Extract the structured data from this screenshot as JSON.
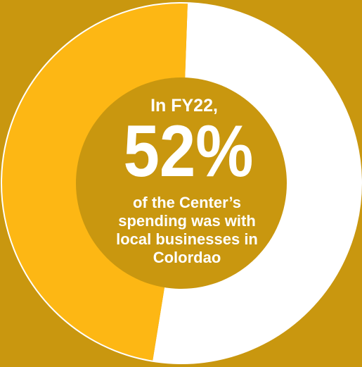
{
  "chart_data": {
    "type": "donut",
    "categories": [
      null,
      null
    ],
    "series": [
      {
        "values": [
          52,
          48
        ],
        "colors": [
          "#ffffff",
          "#fdb714"
        ],
        "value_labels": [
          "52%",
          null
        ]
      }
    ],
    "startangle": 2,
    "intro": "In FY22,",
    "caption_lines": [
      "of the Center’s",
      "spending was with",
      "local businesses in",
      "Colordao"
    ]
  }
}
